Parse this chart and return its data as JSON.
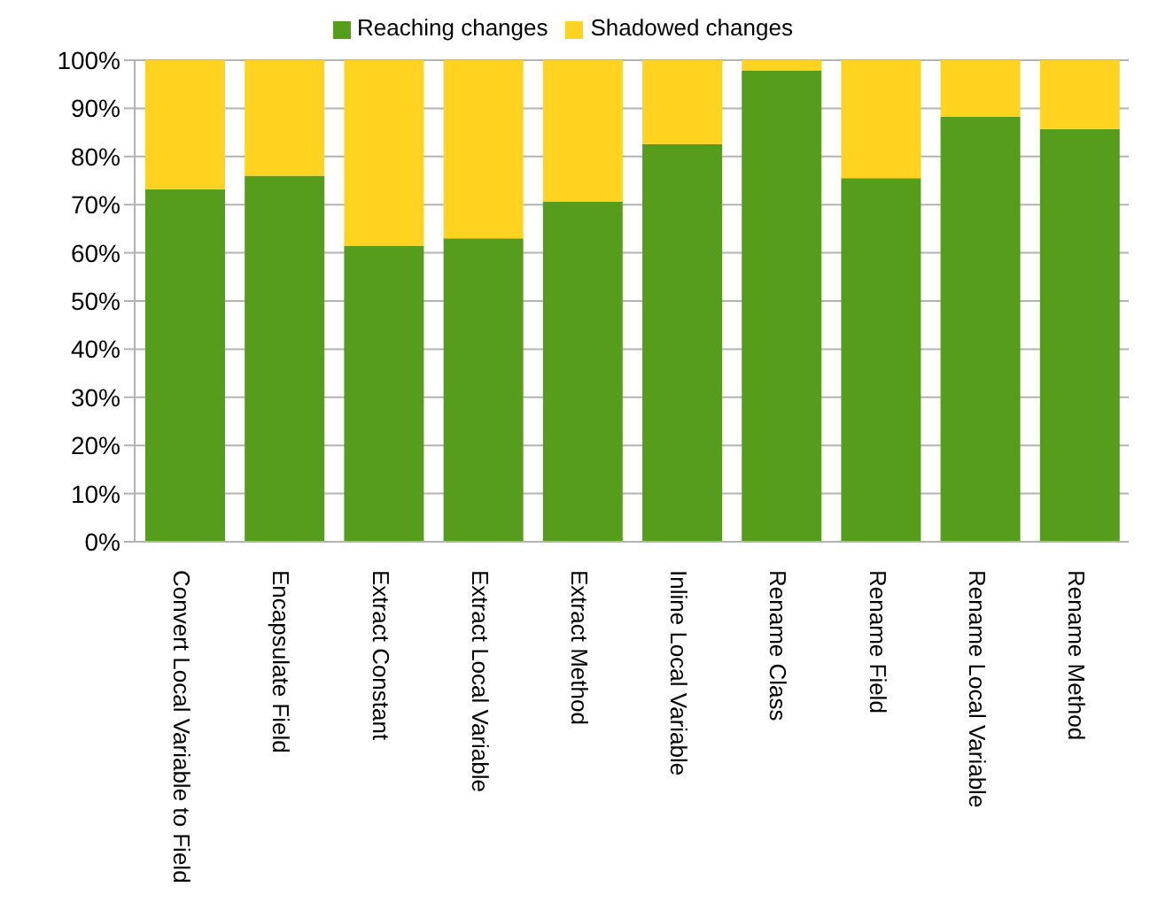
{
  "chart_data": {
    "type": "bar",
    "stacked": true,
    "categories": [
      "Convert Local Variable to Field",
      "Encapsulate Field",
      "Extract Constant",
      "Extract Local Variable",
      "Extract Method",
      "Inline Local Variable",
      "Rename Class",
      "Rename Field",
      "Rename Local Variable",
      "Rename Method"
    ],
    "series": [
      {
        "name": "Reaching changes",
        "color": "#579d1c",
        "values": [
          73.2,
          76.0,
          61.5,
          63.0,
          70.6,
          82.6,
          97.9,
          75.5,
          88.3,
          85.7
        ]
      },
      {
        "name": "Shadowed changes",
        "color": "#ffd320",
        "values": [
          26.8,
          24.0,
          38.5,
          37.0,
          29.4,
          17.4,
          2.1,
          24.5,
          11.7,
          14.3
        ]
      }
    ],
    "ylim": [
      0,
      100
    ],
    "yticks": [
      {
        "value": 0,
        "label": "0%"
      },
      {
        "value": 10,
        "label": "10%"
      },
      {
        "value": 20,
        "label": "20%"
      },
      {
        "value": 30,
        "label": "30%"
      },
      {
        "value": 40,
        "label": "40%"
      },
      {
        "value": 50,
        "label": "50%"
      },
      {
        "value": 60,
        "label": "60%"
      },
      {
        "value": 70,
        "label": "70%"
      },
      {
        "value": 80,
        "label": "80%"
      },
      {
        "value": 90,
        "label": "90%"
      },
      {
        "value": 100,
        "label": "100%"
      }
    ],
    "grid": "y",
    "legend": "top"
  }
}
